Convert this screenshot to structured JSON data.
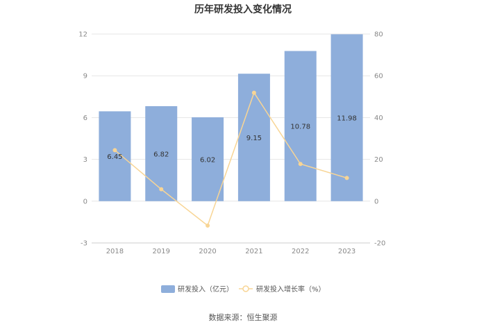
{
  "chart_data": {
    "type": "bar",
    "title": "历年研发投入变化情况",
    "categories": [
      "2018",
      "2019",
      "2020",
      "2021",
      "2022",
      "2023"
    ],
    "series": [
      {
        "name": "研发投入（亿元）",
        "type": "bar",
        "axis": "left",
        "color": "#8eaedb",
        "values": [
          6.45,
          6.82,
          6.02,
          9.15,
          10.78,
          11.98
        ],
        "labels": [
          "6.45",
          "6.82",
          "6.02",
          "9.15",
          "10.78",
          "11.98"
        ]
      },
      {
        "name": "研发投入增长率（%）",
        "type": "line",
        "axis": "right",
        "color": "#f8d595",
        "values": [
          24.4,
          5.7,
          -11.7,
          51.9,
          17.8,
          11.1
        ]
      }
    ],
    "y_left": {
      "ylim": [
        -3,
        12
      ],
      "ticks": [
        -3,
        0,
        3,
        6,
        9,
        12
      ]
    },
    "y_right": {
      "ylim": [
        -20,
        80
      ],
      "ticks": [
        -20,
        0,
        20,
        40,
        60,
        80
      ]
    },
    "grid": true,
    "legend_position": "bottom-center"
  },
  "source": "数据来源：恒生聚源"
}
